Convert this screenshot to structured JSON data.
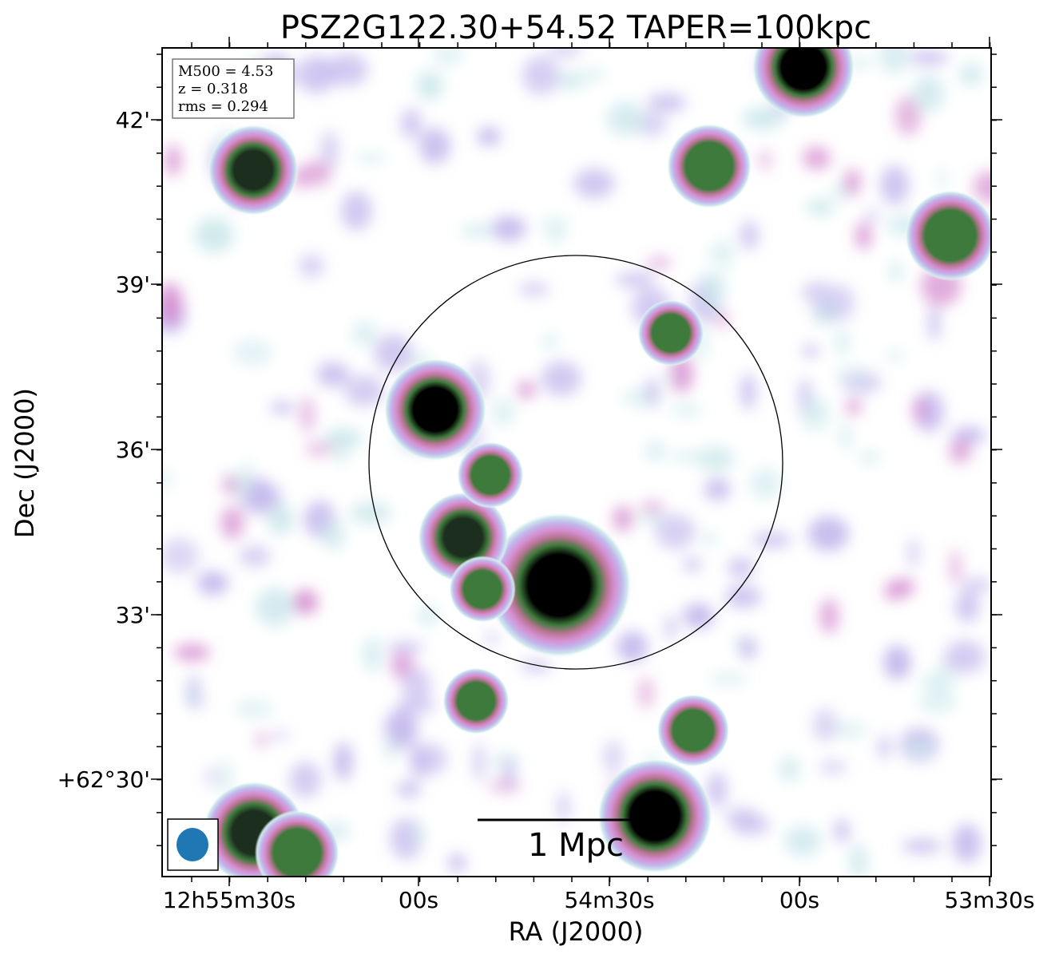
{
  "title": "PSZ2G122.30+54.52 TAPER=100kpc",
  "xlabel": "RA (J2000)",
  "ylabel": "Dec (J2000)",
  "info_box": {
    "mass": "M500 = 4.53",
    "redshift": "z = 0.318",
    "rms": "rms = 0.294"
  },
  "x_ticks": [
    "12h55m30s",
    "00s",
    "54m30s",
    "00s",
    "53m30s"
  ],
  "y_ticks": [
    "42'",
    "39'",
    "36'",
    "33'",
    "+62°30'"
  ],
  "scale_bar_label": "1 Mpc",
  "colors": {
    "colormap": [
      "#ffffff",
      "#cde8ec",
      "#c2b6ec",
      "#d68ed0",
      "#b57590",
      "#3d7a3b",
      "#1c2f1f",
      "#000000"
    ],
    "circle": "#000000",
    "beam": "#1f77b4"
  },
  "sources": [
    {
      "name": "central-bright",
      "x": 700,
      "y": 733,
      "r": 48,
      "peak": 1.0
    },
    {
      "name": "central-upper",
      "x": 545,
      "y": 513,
      "r": 34,
      "peak": 1.0
    },
    {
      "name": "central-mid",
      "x": 580,
      "y": 673,
      "r": 30,
      "peak": 0.92
    },
    {
      "name": "central-lower",
      "x": 604,
      "y": 738,
      "r": 22,
      "peak": 0.75
    },
    {
      "name": "central-top",
      "x": 614,
      "y": 595,
      "r": 22,
      "peak": 0.72
    },
    {
      "name": "top-right",
      "x": 1006,
      "y": 84,
      "r": 34,
      "peak": 1.0
    },
    {
      "name": "top-left",
      "x": 317,
      "y": 213,
      "r": 30,
      "peak": 0.9
    },
    {
      "name": "upper-middle",
      "x": 888,
      "y": 208,
      "r": 28,
      "peak": 0.75
    },
    {
      "name": "mid-right",
      "x": 840,
      "y": 417,
      "r": 22,
      "peak": 0.6
    },
    {
      "name": "lower-middle",
      "x": 596,
      "y": 878,
      "r": 22,
      "peak": 0.72
    },
    {
      "name": "bottom-right",
      "x": 820,
      "y": 1022,
      "r": 38,
      "peak": 1.0
    },
    {
      "name": "bottom-elongated",
      "x": 868,
      "y": 915,
      "r": 24,
      "peak": 0.72
    },
    {
      "name": "bottom-left-a",
      "x": 318,
      "y": 1043,
      "r": 34,
      "peak": 0.92
    },
    {
      "name": "bottom-left-b",
      "x": 372,
      "y": 1068,
      "r": 28,
      "peak": 0.8
    },
    {
      "name": "far-right",
      "x": 1190,
      "y": 295,
      "r": 30,
      "peak": 0.58
    }
  ]
}
